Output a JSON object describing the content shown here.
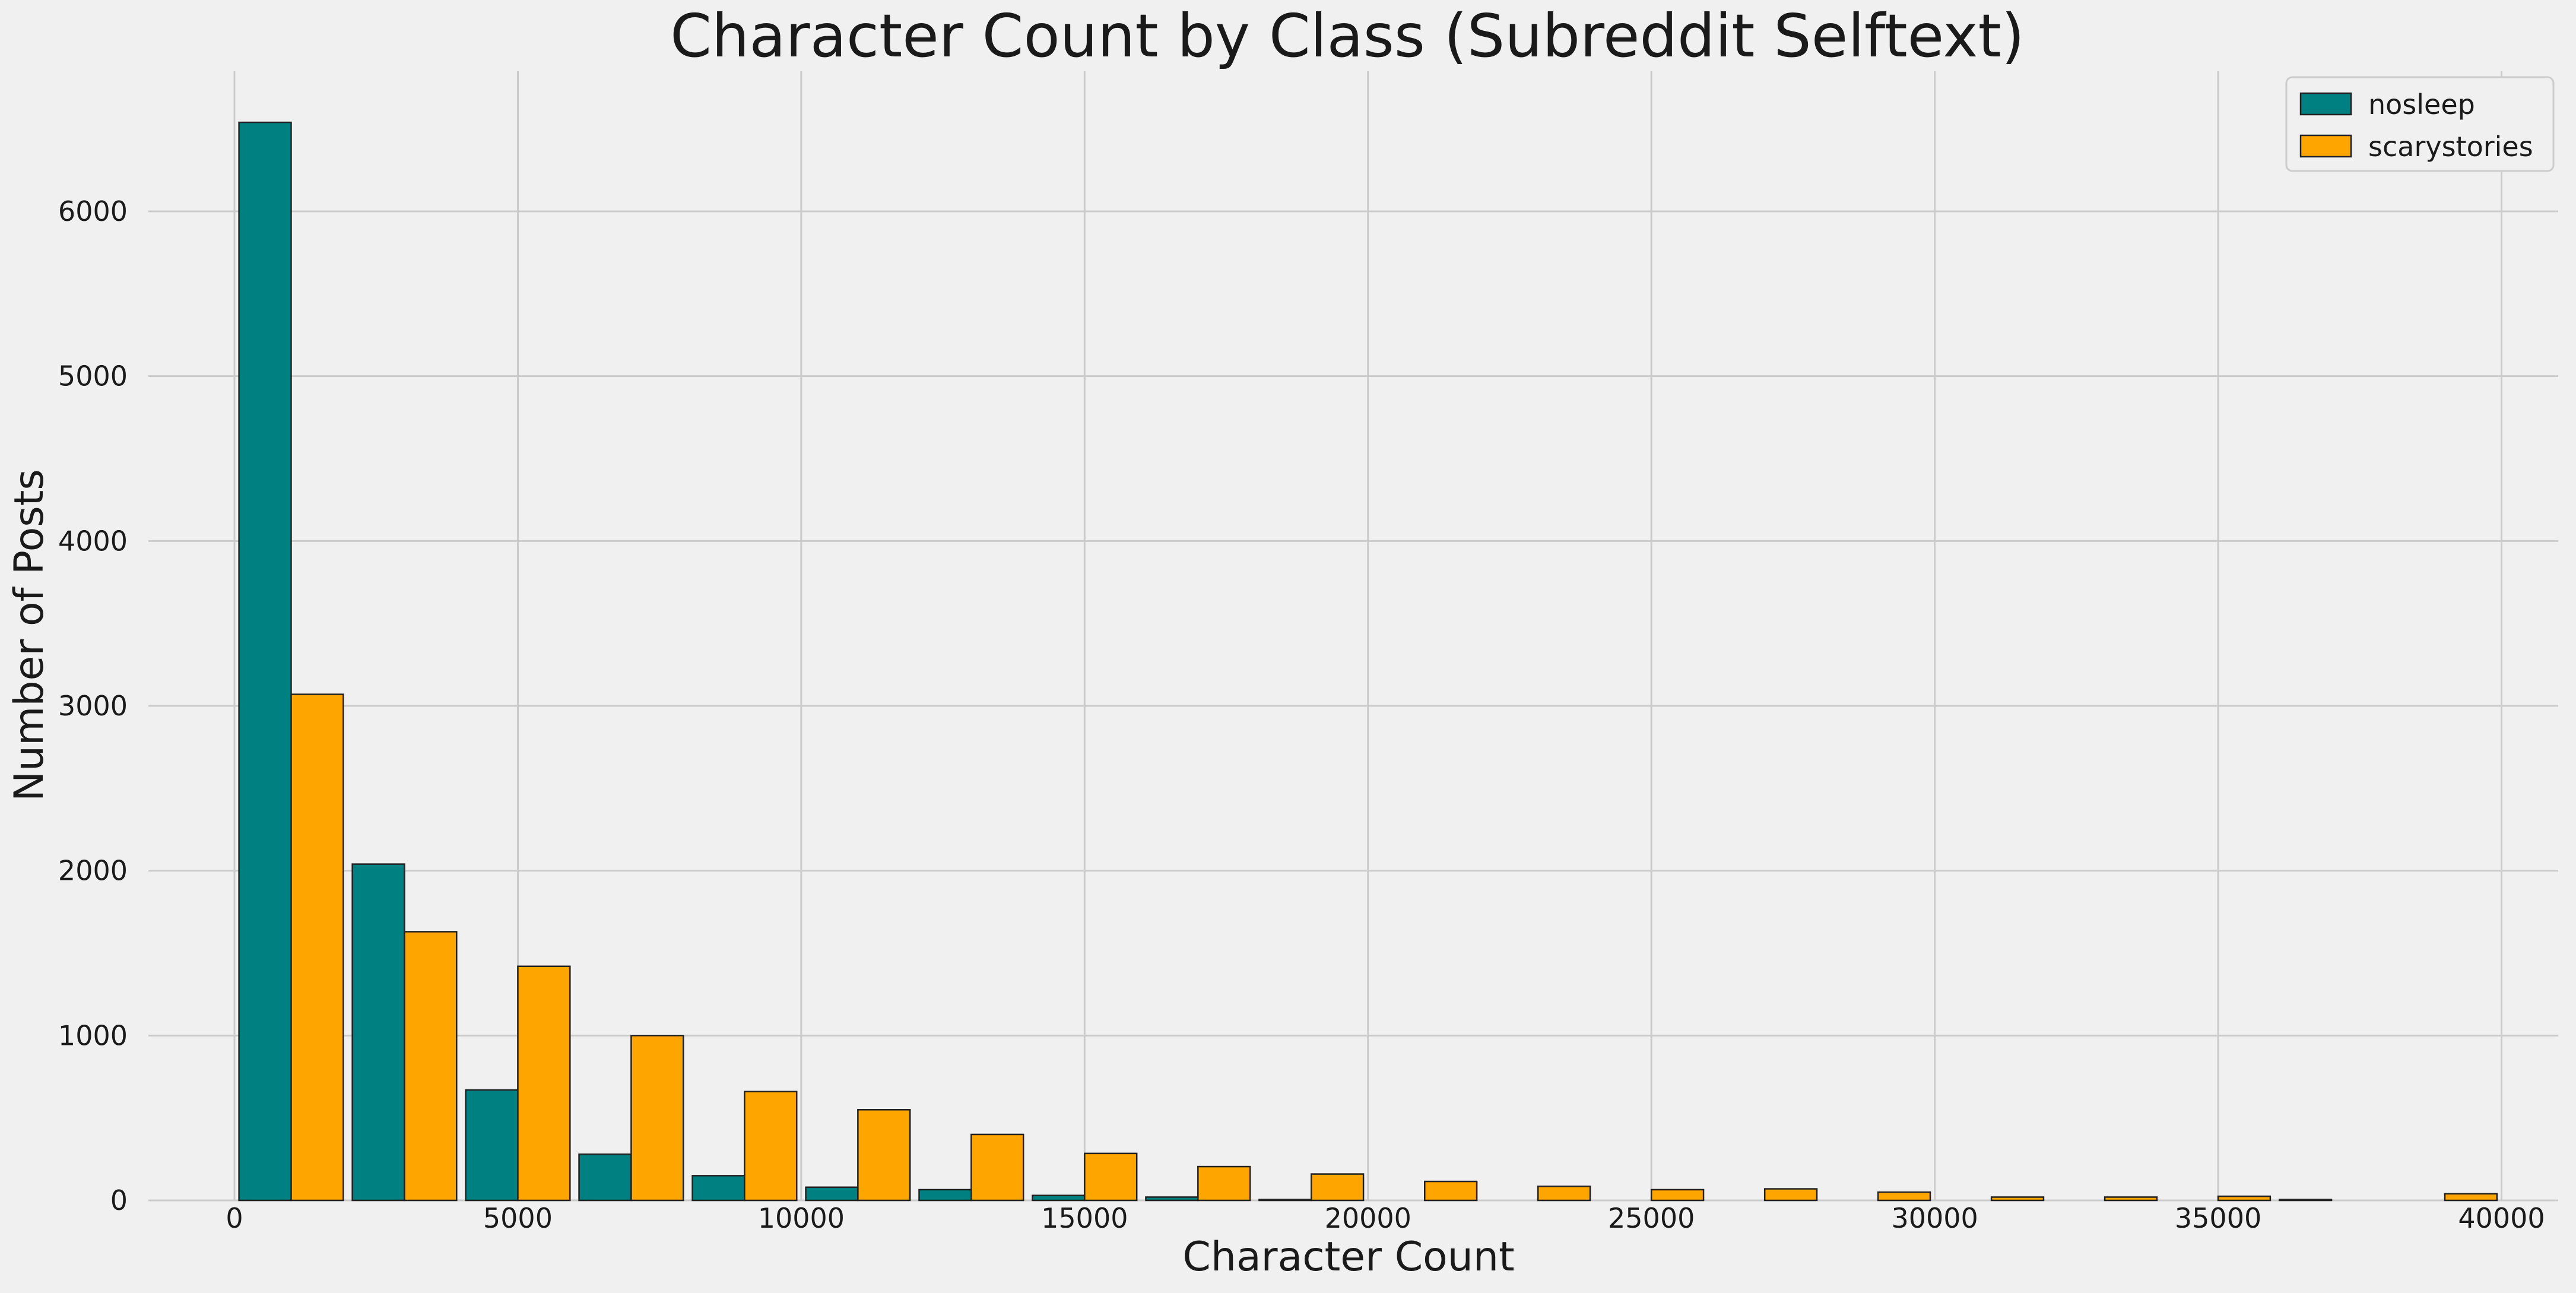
{
  "chart_data": {
    "type": "bar",
    "title": "Character Count by Class (Subreddit Selftext)",
    "xlabel": "Character Count",
    "ylabel": "Number of Posts",
    "xlim": [
      0,
      41000
    ],
    "ylim": [
      0,
      6850
    ],
    "x_ticks": [
      0,
      5000,
      10000,
      15000,
      20000,
      25000,
      30000,
      35000,
      40000
    ],
    "y_ticks": [
      0,
      1000,
      2000,
      3000,
      4000,
      5000,
      6000
    ],
    "grid": true,
    "legend_position": "top-right",
    "bin_edges": [
      0,
      2000,
      4000,
      6000,
      8000,
      10000,
      12000,
      14000,
      16000,
      18000,
      20000,
      22000,
      24000,
      26000,
      28000,
      30000,
      32000,
      34000,
      36000,
      38000,
      40000
    ],
    "series": [
      {
        "name": "nosleep",
        "color": "#008080",
        "values": [
          6540,
          2040,
          670,
          280,
          150,
          80,
          65,
          30,
          20,
          5,
          0,
          0,
          0,
          0,
          0,
          0,
          0,
          0,
          5,
          0
        ]
      },
      {
        "name": "scarystories",
        "color": "#ffa500",
        "values": [
          3070,
          1630,
          1420,
          1000,
          660,
          550,
          400,
          285,
          205,
          160,
          115,
          85,
          65,
          70,
          50,
          20,
          20,
          25,
          0,
          40
        ]
      }
    ]
  }
}
